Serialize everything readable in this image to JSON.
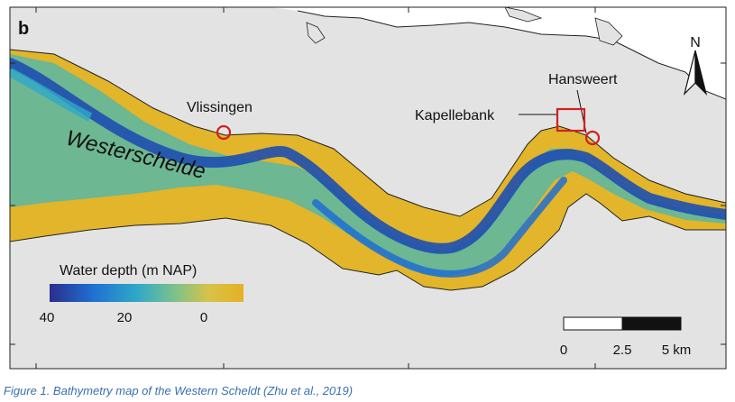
{
  "panel_label": "b",
  "north_label": "N",
  "places": [
    {
      "name": "Vlissingen"
    },
    {
      "name": "Hansweert"
    },
    {
      "name": "Kapellebank"
    }
  ],
  "water_name": "Westerschelde",
  "legend": {
    "title": "Water depth (m NAP)",
    "ticks": [
      "40",
      "20",
      "0"
    ],
    "colors": [
      "#2b2e8c",
      "#1f6fd1",
      "#2fa8c8",
      "#7ec28a",
      "#d8c24a",
      "#e6b024"
    ]
  },
  "scale_bar": {
    "labels": [
      "0",
      "2.5",
      "5 km"
    ]
  },
  "colors": {
    "land": "#e3e3e3",
    "sea": "#ffffff",
    "marker": "#d0201f",
    "shallow": "#e2b52a",
    "mid": "#58b7a4",
    "deep": "#1e4fb0"
  },
  "caption": "Figure 1. Bathymetry map of the Western Scheldt (Zhu et al., 2019)"
}
